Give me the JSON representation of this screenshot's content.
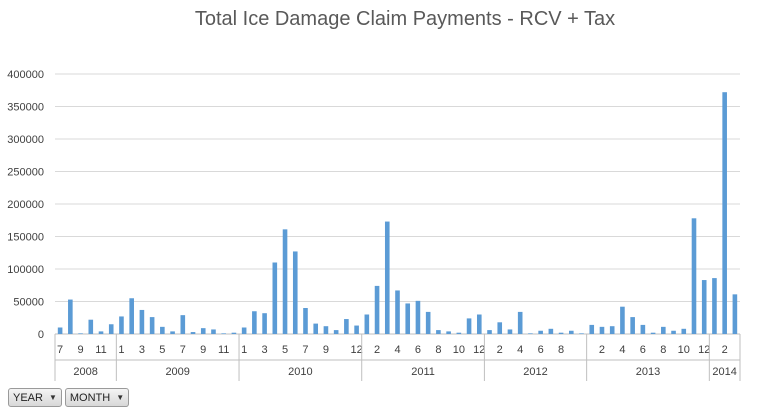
{
  "chart_data": {
    "type": "bar",
    "title": "Total Ice Damage Claim Payments - RCV + Tax",
    "xlabel": "",
    "ylabel": "",
    "ylim": [
      0,
      400000
    ],
    "yticks": [
      0,
      50000,
      100000,
      150000,
      200000,
      250000,
      300000,
      350000,
      400000
    ],
    "grid": true,
    "color": "#5b9bd5",
    "years": [
      {
        "label": "2008",
        "months": [
          7,
          8,
          9,
          10,
          11,
          12
        ]
      },
      {
        "label": "2009",
        "months": [
          1,
          2,
          3,
          4,
          5,
          6,
          7,
          8,
          9,
          10,
          11,
          12
        ]
      },
      {
        "label": "2010",
        "months": [
          1,
          2,
          3,
          4,
          5,
          6,
          7,
          8,
          9,
          10,
          11,
          12
        ]
      },
      {
        "label": "2011",
        "months": [
          1,
          2,
          3,
          4,
          5,
          6,
          7,
          8,
          9,
          10,
          11,
          12
        ]
      },
      {
        "label": "2012",
        "months": [
          1,
          2,
          3,
          4,
          5,
          6,
          7,
          8,
          9,
          10
        ]
      },
      {
        "label": "2013",
        "months": [
          1,
          2,
          3,
          4,
          5,
          6,
          7,
          8,
          9,
          10,
          11,
          12
        ]
      },
      {
        "label": "2014",
        "months": [
          1,
          2,
          3
        ]
      }
    ],
    "tick_labels": [
      "7",
      "9",
      "11",
      "1",
      "3",
      "5",
      "7",
      "9",
      "11",
      "1",
      "3",
      "5",
      "7",
      "9",
      "12",
      "2",
      "4",
      "6",
      "8",
      "10",
      "12",
      "2",
      "4",
      "6",
      "8",
      "2",
      "4",
      "6",
      "8",
      "10",
      "12",
      "2"
    ],
    "values": [
      10000,
      53000,
      1000,
      22000,
      4000,
      15000,
      27000,
      55000,
      37000,
      26000,
      11000,
      4000,
      29000,
      3000,
      9000,
      7000,
      1000,
      2000,
      10000,
      35000,
      32000,
      110000,
      161000,
      127000,
      40000,
      16000,
      12000,
      6000,
      23000,
      13000,
      30000,
      74000,
      173000,
      67000,
      47000,
      51000,
      34000,
      6000,
      4000,
      2000,
      24000,
      30000,
      6000,
      18000,
      7000,
      34000,
      1000,
      5000,
      8000,
      2000,
      5000,
      1000,
      14000,
      11000,
      12000,
      42000,
      26000,
      14000,
      2000,
      11000,
      5000,
      8000,
      178000,
      83000,
      86000,
      372000,
      61000
    ]
  },
  "filters": [
    {
      "label": "YEAR"
    },
    {
      "label": "MONTH"
    }
  ]
}
